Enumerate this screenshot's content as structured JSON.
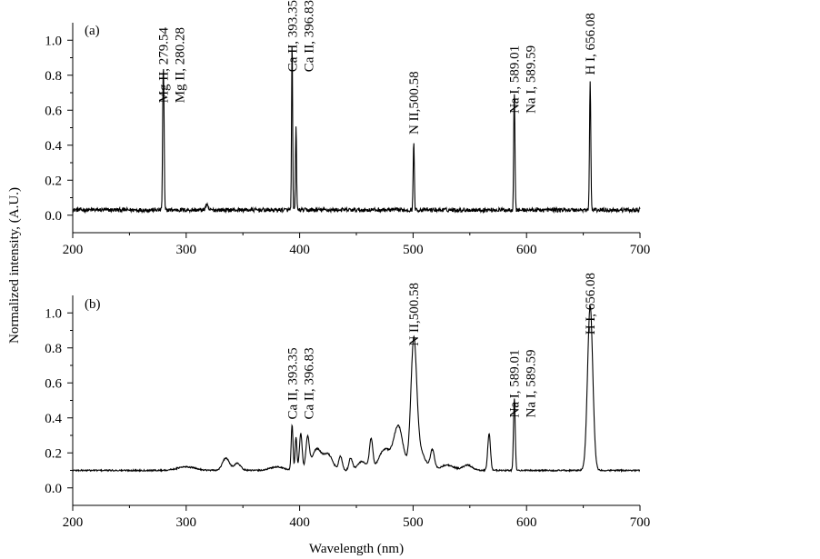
{
  "figure": {
    "xlabel": "Wavelength (nm)",
    "ylabel": "Normalized intensity, (A.U.)"
  },
  "chart_data": [
    {
      "type": "line",
      "panel": "(a)",
      "xlim": [
        200,
        700
      ],
      "ylim": [
        -0.1,
        1.1
      ],
      "xticks": [
        200,
        300,
        400,
        500,
        600,
        700
      ],
      "yticks": [
        0.0,
        0.2,
        0.4,
        0.6,
        0.8,
        1.0
      ],
      "baseline": 0.03,
      "noise": 0.012,
      "peaks": [
        {
          "x": 279.54,
          "y": 0.58,
          "w": 0.45
        },
        {
          "x": 280.28,
          "y": 0.55,
          "w": 0.45
        },
        {
          "x": 318,
          "y": 0.03,
          "w": 1.0
        },
        {
          "x": 393.35,
          "y": 0.97,
          "w": 0.45
        },
        {
          "x": 396.83,
          "y": 0.49,
          "w": 0.45
        },
        {
          "x": 500.58,
          "y": 0.4,
          "w": 0.5
        },
        {
          "x": 589.01,
          "y": 0.52,
          "w": 0.45
        },
        {
          "x": 589.59,
          "y": 0.3,
          "w": 0.45
        },
        {
          "x": 656.08,
          "y": 0.74,
          "w": 0.55
        }
      ],
      "labels": [
        {
          "text": "Mg II, 279.54",
          "x": 279.54
        },
        {
          "text": "Mg II, 280.28",
          "x": 280.28
        },
        {
          "text": "Ca II, 393.35",
          "x": 393.35
        },
        {
          "text": "Ca II, 396.83",
          "x": 396.83
        },
        {
          "text": "N II,500.58",
          "x": 500.58
        },
        {
          "text": "Na I, 589.01",
          "x": 589.01
        },
        {
          "text": "Na I, 589.59",
          "x": 589.59
        },
        {
          "text": "H I, 656.08",
          "x": 656.08
        }
      ]
    },
    {
      "type": "line",
      "panel": "(b)",
      "xlim": [
        200,
        700
      ],
      "ylim": [
        -0.1,
        1.1
      ],
      "xticks": [
        200,
        300,
        400,
        500,
        600,
        700
      ],
      "yticks": [
        0.0,
        0.2,
        0.4,
        0.6,
        0.8,
        1.0
      ],
      "baseline": 0.1,
      "noise": 0.004,
      "peaks": [
        {
          "x": 300,
          "y": 0.02,
          "w": 8
        },
        {
          "x": 335,
          "y": 0.07,
          "w": 3
        },
        {
          "x": 345,
          "y": 0.04,
          "w": 3
        },
        {
          "x": 380,
          "y": 0.02,
          "w": 6
        },
        {
          "x": 393.35,
          "y": 0.26,
          "w": 0.8
        },
        {
          "x": 396.83,
          "y": 0.19,
          "w": 0.8
        },
        {
          "x": 401,
          "y": 0.21,
          "w": 1.2
        },
        {
          "x": 407,
          "y": 0.18,
          "w": 1.5
        },
        {
          "x": 415,
          "y": 0.12,
          "w": 4
        },
        {
          "x": 425,
          "y": 0.09,
          "w": 4
        },
        {
          "x": 436,
          "y": 0.08,
          "w": 1.5
        },
        {
          "x": 445,
          "y": 0.07,
          "w": 1.5
        },
        {
          "x": 455,
          "y": 0.05,
          "w": 4
        },
        {
          "x": 463,
          "y": 0.17,
          "w": 1.5
        },
        {
          "x": 475,
          "y": 0.12,
          "w": 5
        },
        {
          "x": 487,
          "y": 0.25,
          "w": 4
        },
        {
          "x": 500.58,
          "y": 0.68,
          "w": 2.5
        },
        {
          "x": 505,
          "y": 0.12,
          "w": 5
        },
        {
          "x": 517,
          "y": 0.11,
          "w": 1.8
        },
        {
          "x": 530,
          "y": 0.03,
          "w": 6
        },
        {
          "x": 548,
          "y": 0.03,
          "w": 4
        },
        {
          "x": 567,
          "y": 0.21,
          "w": 1.2
        },
        {
          "x": 589.01,
          "y": 0.27,
          "w": 0.7
        },
        {
          "x": 589.59,
          "y": 0.18,
          "w": 0.7
        },
        {
          "x": 656.08,
          "y": 0.94,
          "w": 2.3
        }
      ],
      "labels": [
        {
          "text": "Ca II, 393.35",
          "x": 393.35
        },
        {
          "text": "Ca II, 396.83",
          "x": 396.83
        },
        {
          "text": "N II,500.58",
          "x": 500.58
        },
        {
          "text": "Na I, 589.01",
          "x": 589.01
        },
        {
          "text": "Na I, 589.59",
          "x": 589.59
        },
        {
          "text": "H I, 656.08",
          "x": 656.08
        }
      ]
    }
  ]
}
